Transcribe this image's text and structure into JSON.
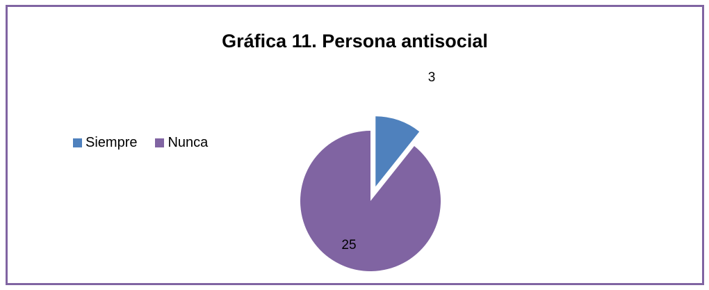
{
  "chart_data": {
    "type": "pie",
    "title": "Gráfica 11. Persona antisocial",
    "categories": [
      "Siempre",
      "Nunca"
    ],
    "values": [
      3,
      25
    ],
    "data_labels": [
      "3",
      "25"
    ],
    "colors": [
      "#4f81bd",
      "#8064a2"
    ],
    "exploded": true,
    "legend_position": "left"
  },
  "frame": {
    "border_color": "#8064a2"
  }
}
